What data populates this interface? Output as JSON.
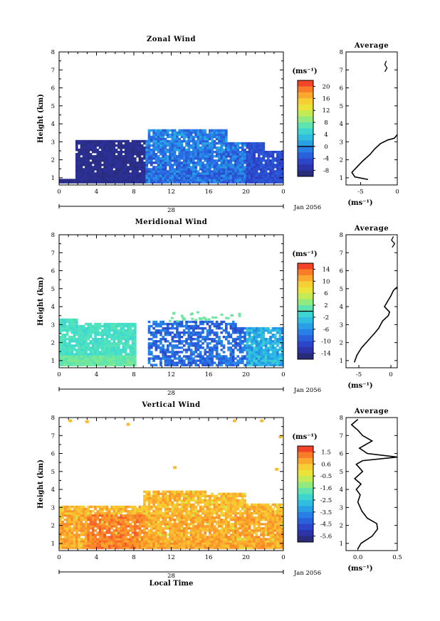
{
  "chart_data": [
    {
      "type": "heatmap",
      "title": "Zonal Wind",
      "ylabel": "Height (km)",
      "xlabel": "",
      "unit": "(ms⁻¹)",
      "date_label": "Jan 2056",
      "day_label": "28",
      "ylim": [
        0.6,
        8
      ],
      "xlim": [
        0,
        24
      ],
      "x_ticks": [
        "0",
        "4",
        "8",
        "12",
        "16",
        "20",
        "0"
      ],
      "y_ticks": [
        "1",
        "2",
        "3",
        "4",
        "5",
        "6",
        "7",
        "8"
      ],
      "colorbar_ticks": [
        "20",
        "16",
        "12",
        "8",
        "4",
        "0",
        "-4",
        "-8"
      ],
      "colorbar_range": [
        -10,
        22
      ],
      "zero_line": 0,
      "average": {
        "title": "Average",
        "xlabel": "(ms⁻¹)",
        "x_ticks": [
          "-5",
          "0"
        ],
        "xlim": [
          -7,
          0
        ],
        "profile": [
          [
            -4,
            0.9
          ],
          [
            -5.8,
            1.05
          ],
          [
            -6.2,
            1.3
          ],
          [
            -5.5,
            1.6
          ],
          [
            -4.8,
            1.9
          ],
          [
            -3.7,
            2.3
          ],
          [
            -3.1,
            2.6
          ],
          [
            -2.3,
            2.9
          ],
          [
            -1.3,
            3.1
          ],
          [
            -0.4,
            3.2
          ],
          [
            0,
            3.4
          ]
        ],
        "profile_top": [
          [
            -1.7,
            6.9
          ],
          [
            -1.4,
            7.1
          ],
          [
            -1.7,
            7.3
          ],
          [
            -1.5,
            7.5
          ]
        ]
      }
    },
    {
      "type": "heatmap",
      "title": "Meridional Wind",
      "ylabel": "Height (km)",
      "xlabel": "",
      "unit": "(ms⁻¹)",
      "date_label": "Jan 2056",
      "day_label": "28",
      "ylim": [
        0.6,
        8
      ],
      "xlim": [
        0,
        24
      ],
      "x_ticks": [
        "0",
        "4",
        "8",
        "12",
        "16",
        "20",
        "0"
      ],
      "y_ticks": [
        "1",
        "2",
        "3",
        "4",
        "5",
        "6",
        "7",
        "8"
      ],
      "colorbar_ticks": [
        "14",
        "10",
        "6",
        "2",
        "-2",
        "-6",
        "-10",
        "-14"
      ],
      "colorbar_range": [
        -16,
        16
      ],
      "zero_line": 0,
      "average": {
        "title": "Average",
        "xlabel": "(ms⁻¹)",
        "x_ticks": [
          "-5",
          "0"
        ],
        "xlim": [
          -7,
          1
        ],
        "profile": [
          [
            -5.7,
            0.9
          ],
          [
            -5.3,
            1.3
          ],
          [
            -4.6,
            1.7
          ],
          [
            -3.6,
            2.1
          ],
          [
            -2.6,
            2.5
          ],
          [
            -1.9,
            2.8
          ],
          [
            -1.3,
            3.2
          ],
          [
            -0.4,
            3.5
          ],
          [
            -0.2,
            3.7
          ],
          [
            -1.0,
            4.0
          ],
          [
            -0.5,
            4.3
          ],
          [
            0,
            4.6
          ],
          [
            0.4,
            4.9
          ],
          [
            1,
            5.1
          ]
        ],
        "profile_top": [
          [
            0.2,
            7.3
          ],
          [
            0.6,
            7.5
          ],
          [
            0.1,
            7.7
          ],
          [
            0.4,
            7.9
          ]
        ]
      }
    },
    {
      "type": "heatmap",
      "title": "Vertical Wind",
      "ylabel": "Height (km)",
      "xlabel": "Local Time",
      "unit": "(ms⁻¹)",
      "date_label": "Jan 2056",
      "day_label": "28",
      "ylim": [
        0.6,
        8
      ],
      "xlim": [
        0,
        24
      ],
      "x_ticks": [
        "0",
        "4",
        "8",
        "12",
        "16",
        "20",
        "0"
      ],
      "y_ticks": [
        "1",
        "2",
        "3",
        "4",
        "5",
        "6",
        "7",
        "8"
      ],
      "colorbar_ticks": [
        "1.5",
        "0.6",
        "-0.5",
        "-1.6",
        "-2.5",
        "-3.5",
        "-4.5",
        "-5.6"
      ],
      "colorbar_range": [
        -6,
        2
      ],
      "zero_line": null,
      "average": {
        "title": "Average",
        "xlabel": "(ms⁻¹)",
        "x_ticks": [
          "0.0",
          "0.5"
        ],
        "xlim": [
          -0.15,
          0.5
        ],
        "profile": [
          [
            0,
            0.7
          ],
          [
            0.04,
            1.0
          ],
          [
            0.18,
            1.4
          ],
          [
            0.25,
            1.8
          ],
          [
            0.24,
            2.1
          ],
          [
            0.12,
            2.4
          ],
          [
            0.05,
            2.8
          ],
          [
            0.0,
            3.3
          ],
          [
            0.03,
            3.7
          ],
          [
            -0.02,
            4.0
          ],
          [
            0.04,
            4.3
          ],
          [
            -0.04,
            4.6
          ],
          [
            0.06,
            5.0
          ],
          [
            -0.02,
            5.4
          ],
          [
            0.06,
            5.6
          ],
          [
            0.5,
            5.8
          ],
          [
            0.12,
            6.0
          ],
          [
            0.02,
            6.3
          ],
          [
            0.18,
            6.7
          ],
          [
            0.06,
            7.0
          ],
          [
            0.0,
            7.3
          ],
          [
            -0.08,
            7.6
          ],
          [
            0.0,
            7.9
          ]
        ]
      }
    }
  ]
}
